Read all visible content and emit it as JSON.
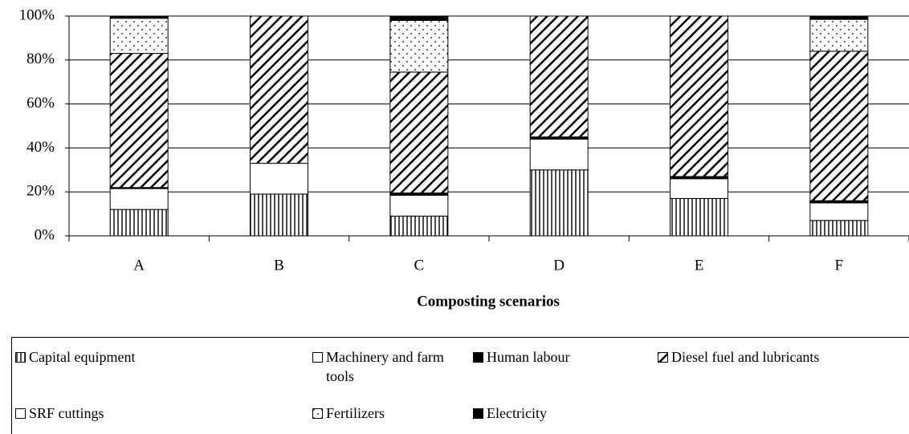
{
  "chart_data": {
    "type": "stacked-bar",
    "x_label": "Composting scenarios",
    "categories": [
      "A",
      "B",
      "C",
      "D",
      "E",
      "F"
    ],
    "ylim": [
      0,
      100
    ],
    "yticks": [
      {
        "value": 0,
        "label": "0%"
      },
      {
        "value": 20,
        "label": "20%"
      },
      {
        "value": 40,
        "label": "40%"
      },
      {
        "value": 60,
        "label": "60%"
      },
      {
        "value": 80,
        "label": "80%"
      },
      {
        "value": 100,
        "label": "100%"
      }
    ],
    "grid": true,
    "series": [
      {
        "name": "Capital equipment",
        "color": "#000000",
        "pattern": "vertical",
        "values": [
          12,
          19,
          9,
          30,
          17,
          7
        ]
      },
      {
        "name": "Machinery and farm tools",
        "color": "#000000",
        "pattern": "blank",
        "values": [
          9.5,
          14,
          9.5,
          14,
          9,
          8
        ]
      },
      {
        "name": "Human labour",
        "color": "#000000",
        "pattern": "solid",
        "values": [
          0.5,
          0,
          1,
          1,
          1,
          1
        ]
      },
      {
        "name": "Diesel fuel and lubricants",
        "color": "#000000",
        "pattern": "diagonal",
        "values": [
          61,
          67,
          55,
          55,
          73,
          68
        ]
      },
      {
        "name": "SRF cuttings",
        "color": "#000000",
        "pattern": "blank",
        "values": [
          0,
          0,
          0,
          0,
          0,
          0
        ]
      },
      {
        "name": "Fertilizers",
        "color": "#000000",
        "pattern": "dots",
        "values": [
          16,
          0,
          23.5,
          0,
          0,
          14.5
        ]
      },
      {
        "name": "Electricity",
        "color": "#000000",
        "pattern": "solid",
        "values": [
          1,
          0,
          2,
          0,
          0,
          1.5
        ]
      }
    ]
  }
}
